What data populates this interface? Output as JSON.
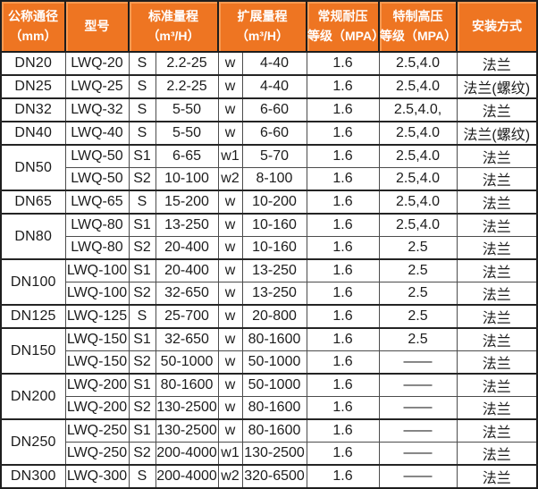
{
  "colors": {
    "header_bg": "#EE7522",
    "header_highlight": "#F89A52",
    "header_text": "#FFFFFF",
    "border_dark": "#1D1D1D",
    "grid_vertical": "#4C4C4C",
    "grid_subrow": "#9C9C9C",
    "cell_text": "#1C1C1C",
    "cell_bg": "#FFFFFF"
  },
  "header": {
    "diameter_line1": "公称通径",
    "diameter_line2": "（mm）",
    "model": "型号",
    "standard_line1": "标准量程",
    "standard_line2": "（m³/H）",
    "extended_line1": "扩展量程",
    "extended_line2": "（m³/H）",
    "regular_line1": "常规耐压",
    "regular_line2": "等级（MPA）",
    "special_line1": "特制高压",
    "special_line2": "等级（MPA）",
    "install": "安装方式"
  },
  "groups": [
    {
      "dn": "DN20",
      "rows": [
        {
          "model": "LWQ-20",
          "s_label": "S",
          "standard_range": "2.2-25",
          "w_label": "w",
          "extended_range": "4-40",
          "regular_mpa": "1.6",
          "special_mpa": "2.5,4.0",
          "install": "法兰"
        }
      ]
    },
    {
      "dn": "DN25",
      "rows": [
        {
          "model": "LWQ-25",
          "s_label": "S",
          "standard_range": "2.2-25",
          "w_label": "w",
          "extended_range": "4-40",
          "regular_mpa": "1.6",
          "special_mpa": "2.5,4.0",
          "install": "法兰(螺纹)"
        }
      ]
    },
    {
      "dn": "DN32",
      "rows": [
        {
          "model": "LWQ-32",
          "s_label": "S",
          "standard_range": "5-50",
          "w_label": "w",
          "extended_range": "6-60",
          "regular_mpa": "1.6",
          "special_mpa": "2.5,4.0,",
          "install": "法兰"
        }
      ]
    },
    {
      "dn": "DN40",
      "rows": [
        {
          "model": "LWQ-40",
          "s_label": "S",
          "standard_range": "5-50",
          "w_label": "w",
          "extended_range": "6-60",
          "regular_mpa": "1.6",
          "special_mpa": "2.5,4.0",
          "install": "法兰(螺纹)"
        }
      ]
    },
    {
      "dn": "DN50",
      "rows": [
        {
          "model": "LWQ-50",
          "s_label": "S1",
          "standard_range": "6-65",
          "w_label": "w1",
          "extended_range": "5-70",
          "regular_mpa": "1.6",
          "special_mpa": "2.5,4.0",
          "install": "法兰"
        },
        {
          "model": "LWQ-50",
          "s_label": "S2",
          "standard_range": "10-100",
          "w_label": "w2",
          "extended_range": "8-100",
          "regular_mpa": "1.6",
          "special_mpa": "2.5,4.0",
          "install": "法兰"
        }
      ]
    },
    {
      "dn": "DN65",
      "rows": [
        {
          "model": "LWQ-65",
          "s_label": "S",
          "standard_range": "15-200",
          "w_label": "w",
          "extended_range": "10-200",
          "regular_mpa": "1.6",
          "special_mpa": "2.5,4.0",
          "install": "法兰"
        }
      ]
    },
    {
      "dn": "DN80",
      "rows": [
        {
          "model": "LWQ-80",
          "s_label": "S1",
          "standard_range": "13-250",
          "w_label": "w",
          "extended_range": "10-160",
          "regular_mpa": "1.6",
          "special_mpa": "2.5,4.0",
          "install": "法兰"
        },
        {
          "model": "LWQ-80",
          "s_label": "S2",
          "standard_range": "20-400",
          "w_label": "w",
          "extended_range": "10-160",
          "regular_mpa": "1.6",
          "special_mpa": "2.5",
          "install": "法兰"
        }
      ]
    },
    {
      "dn": "DN100",
      "rows": [
        {
          "model": "LWQ-100",
          "s_label": "S1",
          "standard_range": "20-400",
          "w_label": "w",
          "extended_range": "13-250",
          "regular_mpa": "1.6",
          "special_mpa": "2.5",
          "install": "法兰"
        },
        {
          "model": "LWQ-100",
          "s_label": "S2",
          "standard_range": "32-650",
          "w_label": "w",
          "extended_range": "13-250",
          "regular_mpa": "1.6",
          "special_mpa": "2.5",
          "install": "法兰"
        }
      ]
    },
    {
      "dn": "DN125",
      "rows": [
        {
          "model": "LWQ-125",
          "s_label": "S",
          "standard_range": "25-700",
          "w_label": "w",
          "extended_range": "20-800",
          "regular_mpa": "1.6",
          "special_mpa": "2.5",
          "install": "法兰"
        }
      ]
    },
    {
      "dn": "DN150",
      "rows": [
        {
          "model": "LWQ-150",
          "s_label": "S1",
          "standard_range": "32-650",
          "w_label": "w",
          "extended_range": "80-1600",
          "regular_mpa": "1.6",
          "special_mpa": "2.5",
          "install": "法兰"
        },
        {
          "model": "LWQ-150",
          "s_label": "S2",
          "standard_range": "50-1000",
          "w_label": "w",
          "extended_range": "50-1000",
          "regular_mpa": "1.6",
          "special_mpa": "——",
          "install": "法兰"
        }
      ]
    },
    {
      "dn": "DN200",
      "rows": [
        {
          "model": "LWQ-200",
          "s_label": "S1",
          "standard_range": "80-1600",
          "w_label": "w",
          "extended_range": "50-1000",
          "regular_mpa": "1.6",
          "special_mpa": "——",
          "install": "法兰"
        },
        {
          "model": "LWQ-200",
          "s_label": "S2",
          "standard_range": "130-2500",
          "w_label": "w",
          "extended_range": "80-1600",
          "regular_mpa": "1.6",
          "special_mpa": "——",
          "install": "法兰"
        }
      ]
    },
    {
      "dn": "DN250",
      "rows": [
        {
          "model": "LWQ-250",
          "s_label": "S1",
          "standard_range": "130-2500",
          "w_label": "w",
          "extended_range": "80-1600",
          "regular_mpa": "1.6",
          "special_mpa": "——",
          "install": "法兰"
        },
        {
          "model": "LWQ-250",
          "s_label": "S2",
          "standard_range": "200-4000",
          "w_label": "w1",
          "extended_range": "130-2500",
          "regular_mpa": "1.6",
          "special_mpa": "——",
          "install": "法兰"
        }
      ]
    },
    {
      "dn": "DN300",
      "rows": [
        {
          "model": "LWQ-300",
          "s_label": "S",
          "standard_range": "200-4000",
          "w_label": "w2",
          "extended_range": "320-6500",
          "regular_mpa": "1.6",
          "special_mpa": "——",
          "install": "法兰"
        }
      ]
    }
  ]
}
